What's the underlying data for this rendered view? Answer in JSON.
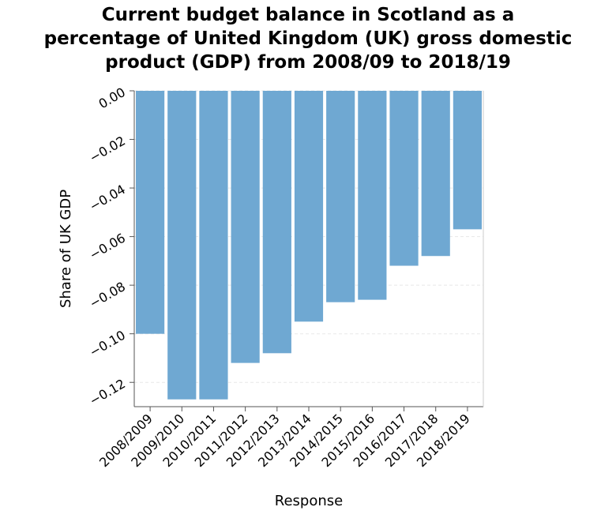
{
  "chart_data": {
    "type": "bar",
    "title": "Current budget balance in Scotland as a percentage of United Kingdom (UK) gross domestic product (GDP) from 2008/09 to 2018/19",
    "xlabel": "Response",
    "ylabel": "Share of UK GDP",
    "categories": [
      "2008/2009",
      "2009/2010",
      "2010/2011",
      "2011/2012",
      "2012/2013",
      "2013/2014",
      "2014/2015",
      "2015/2016",
      "2016/2017",
      "2017/2018",
      "2018/2019"
    ],
    "values": [
      -0.1,
      -0.127,
      -0.127,
      -0.112,
      -0.108,
      -0.095,
      -0.087,
      -0.086,
      -0.072,
      -0.068,
      -0.057
    ],
    "ylim": [
      -0.13,
      0.0
    ],
    "yticks": [
      "0.00",
      "−0.02",
      "−0.04",
      "−0.06",
      "−0.08",
      "−0.10",
      "−0.12"
    ],
    "ytick_values": [
      0,
      -0.02,
      -0.04,
      -0.06,
      -0.08,
      -0.1,
      -0.12
    ],
    "grid": true,
    "bar_color": "#6fa8d2",
    "grid_color": "#e8e8e8"
  }
}
